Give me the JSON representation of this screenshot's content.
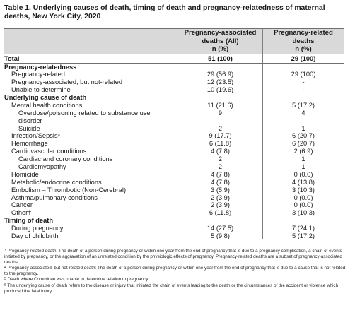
{
  "title": "Table 1. Underlying causes of death, timing of death and pregnancy-relatedness of maternal deaths, New York City, 2020",
  "header": {
    "col1": [
      "Pregnancy-associated",
      "deaths (All)",
      "n (%)"
    ],
    "col2": [
      "Pregnancy-related",
      "deaths",
      "n (%)"
    ]
  },
  "total": {
    "label": "Total",
    "v1": "51 (100)",
    "v2": "29 (100)"
  },
  "rows": [
    {
      "type": "section",
      "label": "Pregnancy-relatedness",
      "v1": "",
      "v2": ""
    },
    {
      "type": "ind1",
      "label": "Pregnancy-related",
      "v1": "29 (56.9)",
      "v2": "29 (100)"
    },
    {
      "type": "ind1",
      "label": "Pregnancy-associated, but not-related",
      "v1": "12 (23.5)",
      "v2": "-"
    },
    {
      "type": "ind1",
      "label": "Unable to determine",
      "v1": "10 (19.6)",
      "v2": "-"
    },
    {
      "type": "section",
      "label": "Underlying cause of death",
      "v1": "",
      "v2": ""
    },
    {
      "type": "ind1",
      "label": "Mental health conditions",
      "v1": "11 (21.6)",
      "v2": "5 (17.2)"
    },
    {
      "type": "ind2 tall",
      "label": "Overdose/poisoning related to substance use disorder",
      "v1": "9",
      "v2": "4"
    },
    {
      "type": "ind2",
      "label": "Suicide",
      "v1": "2",
      "v2": "1"
    },
    {
      "type": "ind1",
      "label": "Infection/Sepsis*",
      "v1": "9 (17.7)",
      "v2": "6 (20.7)"
    },
    {
      "type": "ind1",
      "label": "Hemorrhage",
      "v1": "6 (11.8)",
      "v2": "6 (20.7)"
    },
    {
      "type": "ind1",
      "label": "Cardiovascular conditions",
      "v1": "4 (7.8)",
      "v2": "2 (6.9)"
    },
    {
      "type": "ind2",
      "label": "Cardiac and coronary conditions",
      "v1": "2",
      "v2": "1"
    },
    {
      "type": "ind2",
      "label": "Cardiomyopathy",
      "v1": "2",
      "v2": "1"
    },
    {
      "type": "ind1",
      "label": "Homicide",
      "v1": "4 (7.8)",
      "v2": "0 (0.0)"
    },
    {
      "type": "ind1",
      "label": "Metabolic/endocrine conditions",
      "v1": "4 (7.8)",
      "v2": "4 (13.8)"
    },
    {
      "type": "ind1",
      "label": "Embolism – Thrombotic (Non-Cerebral)",
      "v1": "3 (5.9)",
      "v2": "3 (10.3)"
    },
    {
      "type": "ind1",
      "label": "Asthma/pulmonary conditions",
      "v1": "2 (3.9)",
      "v2": "0 (0.0)"
    },
    {
      "type": "ind1",
      "label": "Cancer",
      "v1": "2 (3.9)",
      "v2": "0 (0.0)"
    },
    {
      "type": "ind1",
      "label": "Other†",
      "v1": "6 (11.8)",
      "v2": "3 (10.3)"
    },
    {
      "type": "section",
      "label": "Timing of death",
      "v1": "",
      "v2": ""
    },
    {
      "type": "ind1",
      "label": "During pregnancy",
      "v1": "14 (27.5)",
      "v2": "7 (24.1)"
    },
    {
      "type": "ind1",
      "label": "Day of childbirth",
      "v1": "5 (9.8)",
      "v2": "5 (17.2)"
    }
  ],
  "footnotes": [
    {
      "mark": "3",
      "text": "Pregnancy-related death: The death of a person during pregnancy or within one year from the end of pregnancy that is due to a pregnancy complication, a chain of events initiated by pregnancy, or the aggravation of an unrelated condition by the physiologic effects of pregnancy. Pregnancy-related deaths are a subset of pregnancy-associated deaths."
    },
    {
      "mark": "4",
      "text": "Pregnancy-associated, but not-related death: The death of a person during pregnancy or within one year from the end of pregnancy that is due to a cause that is not related to the pregnancy."
    },
    {
      "mark": "5",
      "text": "Death where Committee was unable to determine relation to pregnancy."
    },
    {
      "mark": "6",
      "text": "The underlying cause of death refers to the disease or injury that initiated the chain of events leading to the death or the circumstances of the accident or violence which produced the fatal injury."
    }
  ]
}
